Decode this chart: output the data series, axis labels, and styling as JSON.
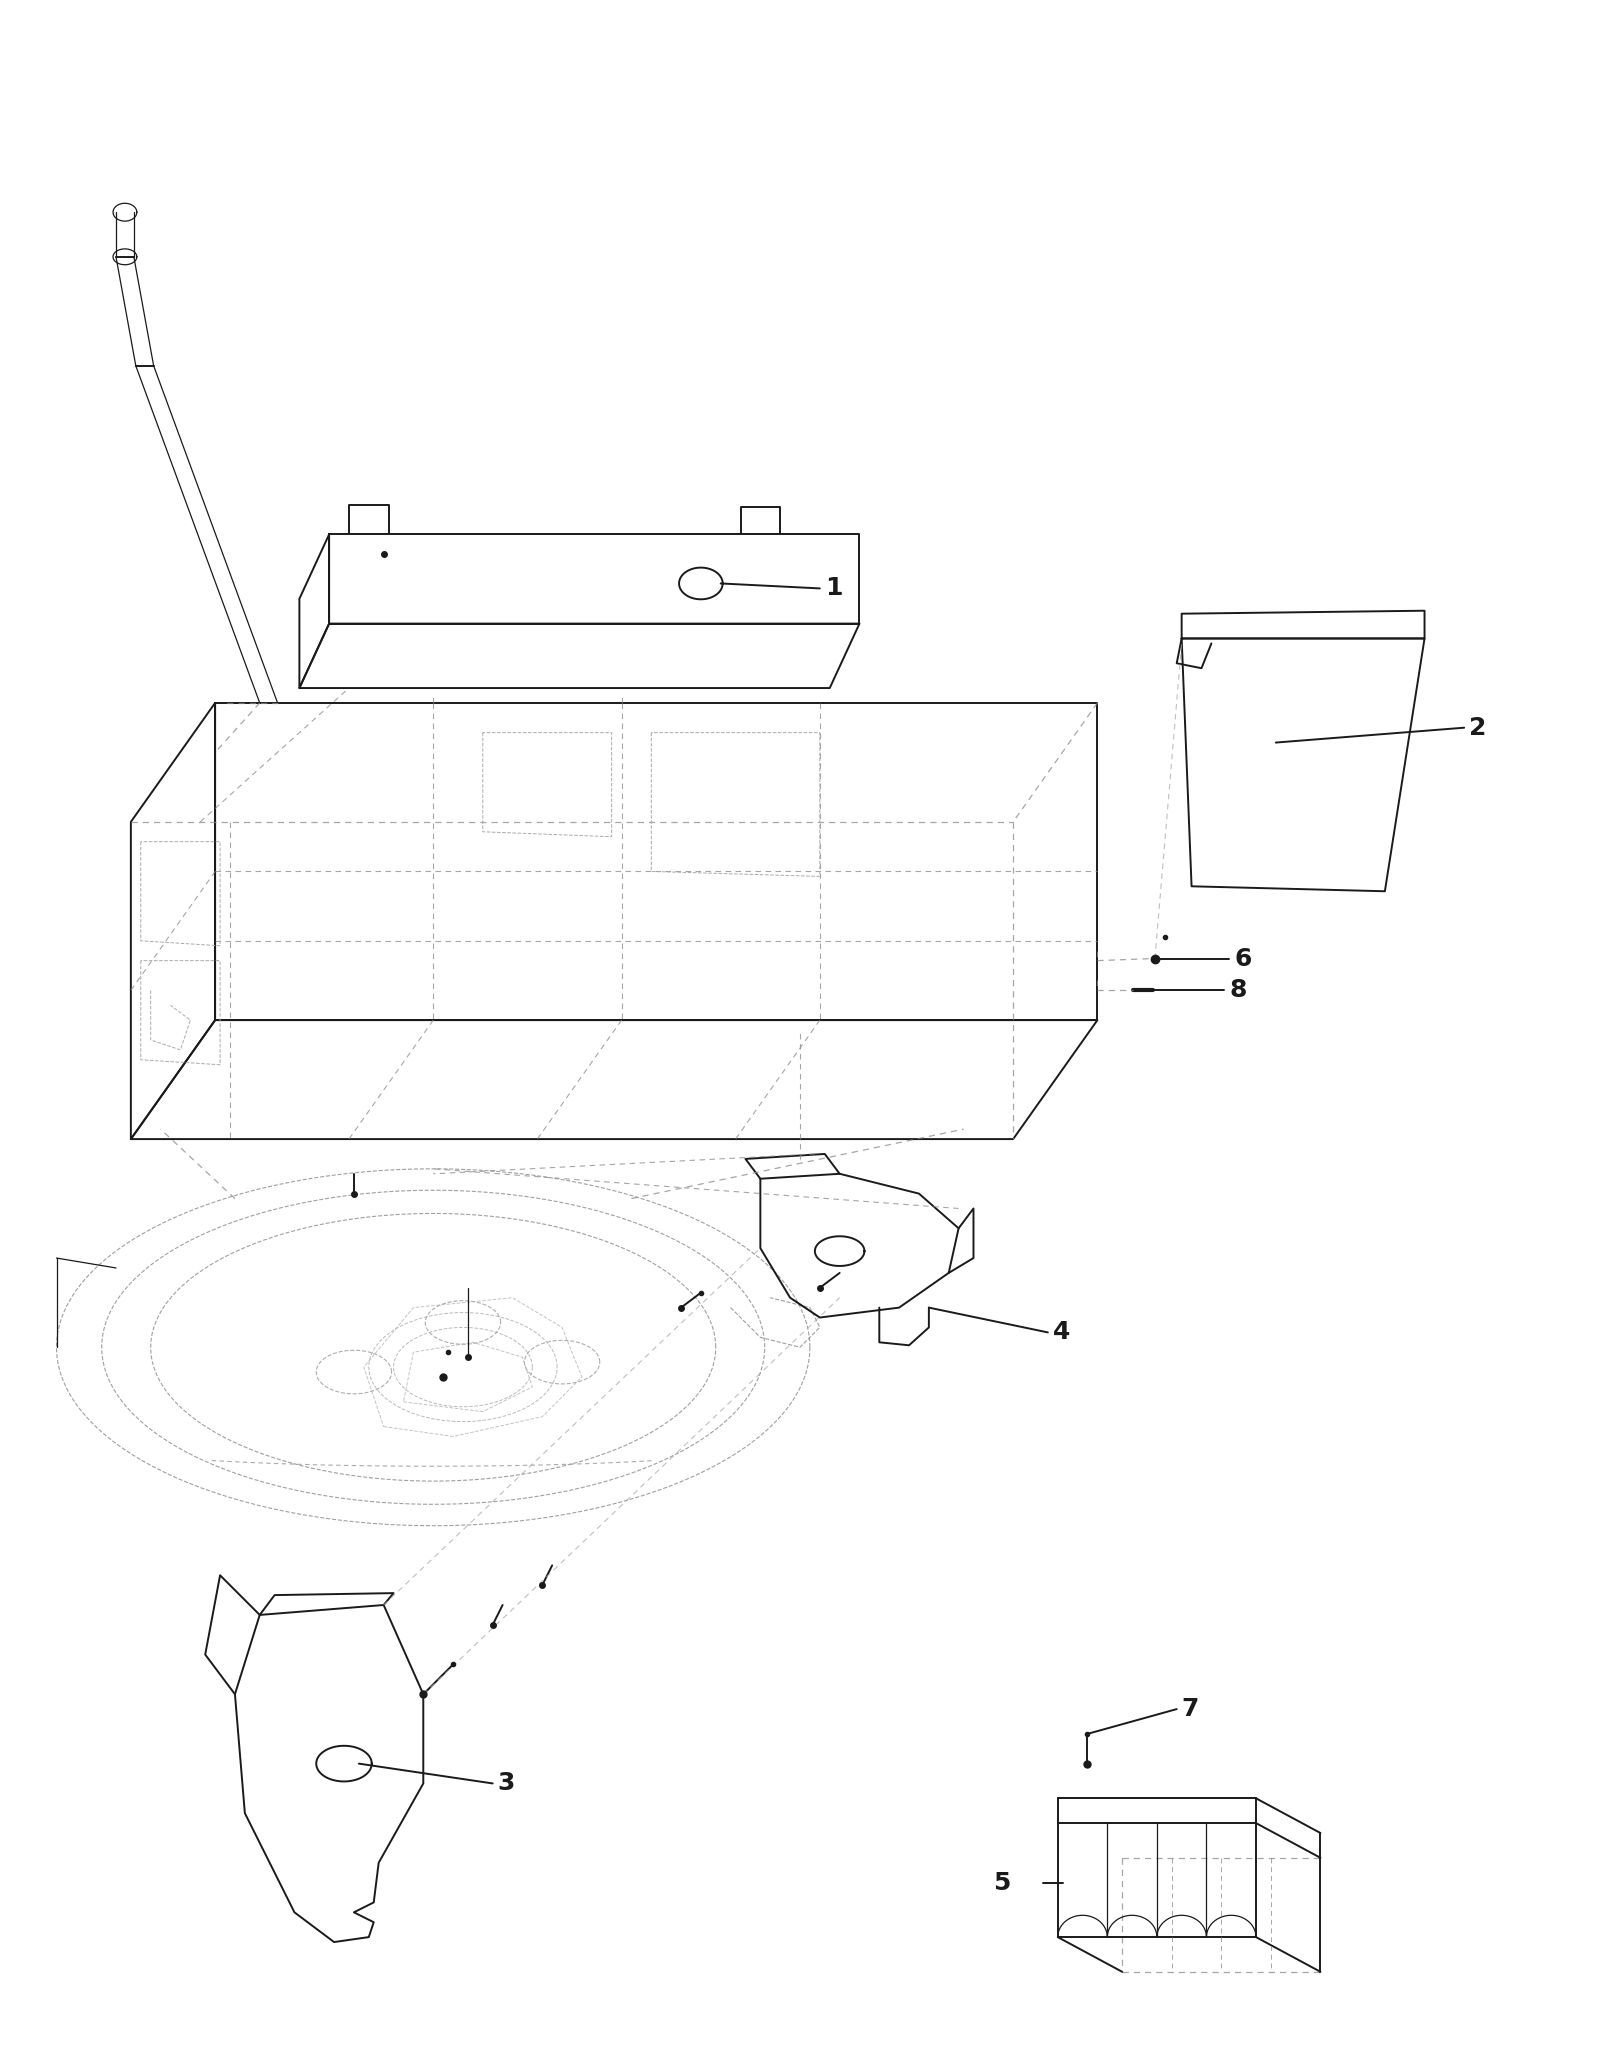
{
  "background_color": "#ffffff",
  "line_color": "#1a1a1a",
  "dashed_color": "#666666",
  "label_color": "#000000",
  "fig_width": 16.0,
  "fig_height": 20.7
}
